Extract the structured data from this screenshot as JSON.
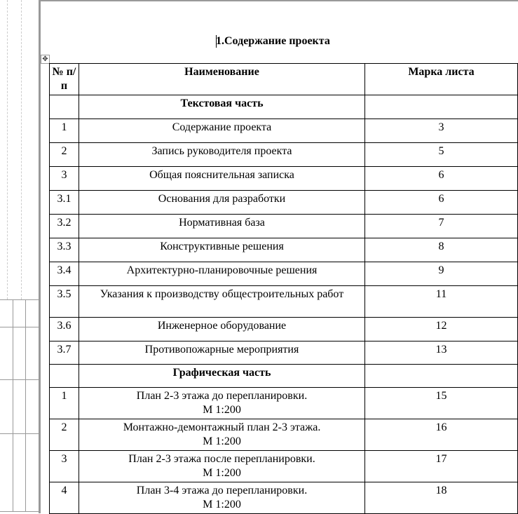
{
  "title": "1.Содержание проекта",
  "table": {
    "headers": [
      "№ п/п",
      "Наименование",
      "Марка листа"
    ],
    "rows": [
      {
        "num": "",
        "name": "Текстовая часть",
        "sheet": "",
        "section": true
      },
      {
        "num": "1",
        "name": "Содержание проекта",
        "sheet": "3"
      },
      {
        "num": "2",
        "name": "Запись руководителя проекта",
        "sheet": "5"
      },
      {
        "num": "3",
        "name": "Общая пояснительная записка",
        "sheet": "6"
      },
      {
        "num": "3.1",
        "name": "Основания для разработки",
        "sheet": "6"
      },
      {
        "num": "3.2",
        "name": "Нормативная база",
        "sheet": "7"
      },
      {
        "num": "3.3",
        "name": "Конструктивные решения",
        "sheet": "8"
      },
      {
        "num": "3.4",
        "name": "Архитектурно-планировочные решения",
        "sheet": "9"
      },
      {
        "num": "3.5",
        "name": "Указания к производству общестроительных работ",
        "sheet": "11"
      },
      {
        "num": "3.6",
        "name": "Инженерное оборудование",
        "sheet": "12"
      },
      {
        "num": "3.7",
        "name": "Противопожарные мероприятия",
        "sheet": "13"
      },
      {
        "num": "",
        "name": "Графическая часть",
        "sheet": "",
        "section": true
      },
      {
        "num": "1",
        "name": "План 2-3 этажа до перепланировки.",
        "name2": "М 1:200",
        "sheet": "15"
      },
      {
        "num": "2",
        "name": "Монтажно-демонтажный план 2-3 этажа.",
        "name2": "М 1:200",
        "sheet": "16"
      },
      {
        "num": "3",
        "name": "План 2-3 этажа после перепланировки.",
        "name2": "М 1:200",
        "sheet": "17"
      },
      {
        "num": "4",
        "name": "План 3-4 этажа до перепланировки.",
        "name2": "М 1:200",
        "sheet": "18"
      }
    ]
  }
}
